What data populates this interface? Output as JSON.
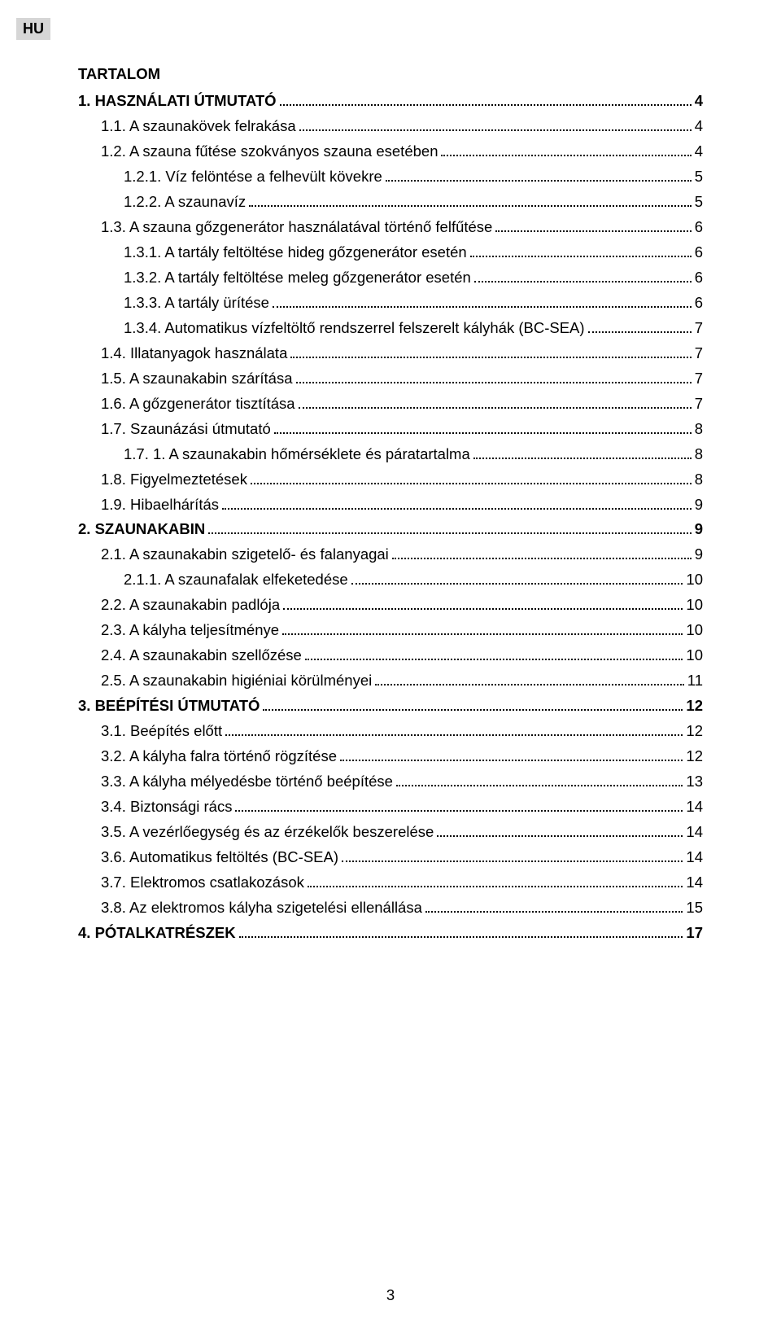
{
  "language_badge": "HU",
  "title": "TARTALOM",
  "page_number": "3",
  "toc": [
    {
      "level": 0,
      "bold": true,
      "label": "1. HASZNÁLATI ÚTMUTATÓ",
      "page": "4"
    },
    {
      "level": 1,
      "bold": false,
      "label": "1.1. A szaunakövek felrakása",
      "page": "4"
    },
    {
      "level": 1,
      "bold": false,
      "label": "1.2. A szauna fűtése szokványos szauna esetében",
      "page": "4"
    },
    {
      "level": 2,
      "bold": false,
      "label": "1.2.1. Víz felöntése a felhevült kövekre",
      "page": "5"
    },
    {
      "level": 2,
      "bold": false,
      "label": "1.2.2. A szaunavíz",
      "page": "5"
    },
    {
      "level": 1,
      "bold": false,
      "label": "1.3. A szauna gőzgenerátor használatával történő felfűtése",
      "page": "6"
    },
    {
      "level": 2,
      "bold": false,
      "label": "1.3.1. A tartály feltöltése hideg gőzgenerátor esetén",
      "page": "6"
    },
    {
      "level": 2,
      "bold": false,
      "label": "1.3.2. A tartály feltöltése meleg gőzgenerátor esetén",
      "page": "6"
    },
    {
      "level": 2,
      "bold": false,
      "label": "1.3.3. A tartály ürítése",
      "page": "6"
    },
    {
      "level": 2,
      "bold": false,
      "label": "1.3.4. Automatikus vízfeltöltő rendszerrel felszerelt kályhák (BC-SEA)",
      "page": "7"
    },
    {
      "level": 1,
      "bold": false,
      "label": "1.4. Illatanyagok használata",
      "page": "7"
    },
    {
      "level": 1,
      "bold": false,
      "label": "1.5. A szaunakabin szárítása",
      "page": "7"
    },
    {
      "level": 1,
      "bold": false,
      "label": "1.6. A gőzgenerátor tisztítása",
      "page": "7"
    },
    {
      "level": 1,
      "bold": false,
      "label": "1.7. Szaunázási útmutató",
      "page": "8"
    },
    {
      "level": 2,
      "bold": false,
      "label": "1.7. 1. A szaunakabin hőmérséklete és páratartalma",
      "page": "8"
    },
    {
      "level": 1,
      "bold": false,
      "label": "1.8. Figyelmeztetések",
      "page": "8"
    },
    {
      "level": 1,
      "bold": false,
      "label": "1.9. Hibaelhárítás",
      "page": "9"
    },
    {
      "level": 0,
      "bold": true,
      "label": "2. SZAUNAKABIN",
      "page": "9"
    },
    {
      "level": 1,
      "bold": false,
      "label": "2.1. A szaunakabin szigetelő- és falanyagai",
      "page": "9"
    },
    {
      "level": 2,
      "bold": false,
      "label": "2.1.1. A szaunafalak elfeketedése",
      "page": "10"
    },
    {
      "level": 1,
      "bold": false,
      "label": "2.2. A szaunakabin padlója",
      "page": "10"
    },
    {
      "level": 1,
      "bold": false,
      "label": "2.3. A kályha teljesítménye",
      "page": "10"
    },
    {
      "level": 1,
      "bold": false,
      "label": "2.4. A szaunakabin szellőzése",
      "page": "10"
    },
    {
      "level": 1,
      "bold": false,
      "label": "2.5. A szaunakabin higiéniai körülményei",
      "page": "11"
    },
    {
      "level": 0,
      "bold": true,
      "label": "3. BEÉPÍTÉSI ÚTMUTATÓ",
      "page": "12"
    },
    {
      "level": 1,
      "bold": false,
      "label": "3.1. Beépítés előtt",
      "page": "12"
    },
    {
      "level": 1,
      "bold": false,
      "label": "3.2. A kályha falra történő rögzítése",
      "page": "12"
    },
    {
      "level": 1,
      "bold": false,
      "label": "3.3. A kályha mélyedésbe történő beépítése",
      "page": "13"
    },
    {
      "level": 1,
      "bold": false,
      "label": "3.4. Biztonsági rács",
      "page": "14"
    },
    {
      "level": 1,
      "bold": false,
      "label": "3.5. A vezérlőegység és az érzékelők beszerelése",
      "page": "14"
    },
    {
      "level": 1,
      "bold": false,
      "label": "3.6. Automatikus feltöltés (BC-SEA)",
      "page": "14"
    },
    {
      "level": 1,
      "bold": false,
      "label": "3.7. Elektromos csatlakozások",
      "page": "14"
    },
    {
      "level": 1,
      "bold": false,
      "label": "3.8. Az elektromos kályha szigetelési ellenállása",
      "page": "15"
    },
    {
      "level": 0,
      "bold": true,
      "label": "4. PÓTALKATRÉSZEK",
      "page": "17"
    }
  ]
}
